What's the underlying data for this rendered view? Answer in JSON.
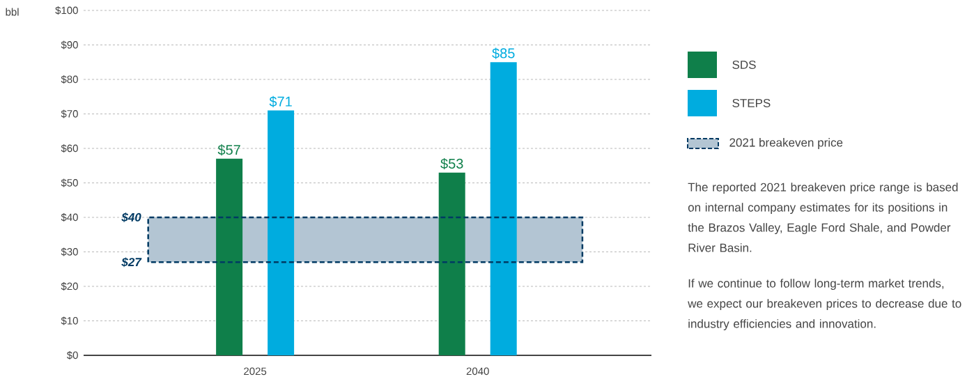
{
  "chart_data": {
    "type": "bar",
    "categories": [
      "2025",
      "2040"
    ],
    "series": [
      {
        "name": "SDS",
        "color": "#0f7f4a",
        "values": [
          57,
          53
        ],
        "value_labels": [
          "$57",
          "$53"
        ]
      },
      {
        "name": "STEPS",
        "color": "#00acdf",
        "values": [
          71,
          85
        ],
        "value_labels": [
          "$71",
          "$85"
        ]
      }
    ],
    "ylim": [
      0,
      100
    ],
    "yticks": [
      {
        "value": 0,
        "label": "$0"
      },
      {
        "value": 10,
        "label": "$10"
      },
      {
        "value": 20,
        "label": "$20"
      },
      {
        "value": 30,
        "label": "$30"
      },
      {
        "value": 40,
        "label": "$40"
      },
      {
        "value": 50,
        "label": "$50"
      },
      {
        "value": 60,
        "label": "$60"
      },
      {
        "value": 70,
        "label": "$70"
      },
      {
        "value": 80,
        "label": "$80"
      },
      {
        "value": 90,
        "label": "$90"
      },
      {
        "value": 100,
        "label": "$100"
      }
    ],
    "bands": [
      {
        "axis": "y",
        "from": 27,
        "to": 40,
        "label": "2021 breakeven price",
        "color": "#b3c5d3"
      }
    ],
    "annotations": [
      "bbl",
      "$40",
      "$27",
      "The reported 2021 breakeven price range is based on internal company estimates for its positions in the Brazos Valley, Eagle Ford Shale, and Powder River Basin.",
      "If we continue to follow long-term market trends, we expect our breakeven prices to decrease due to industry efficiencies and innovation."
    ],
    "grid": "y",
    "legend": "right"
  }
}
